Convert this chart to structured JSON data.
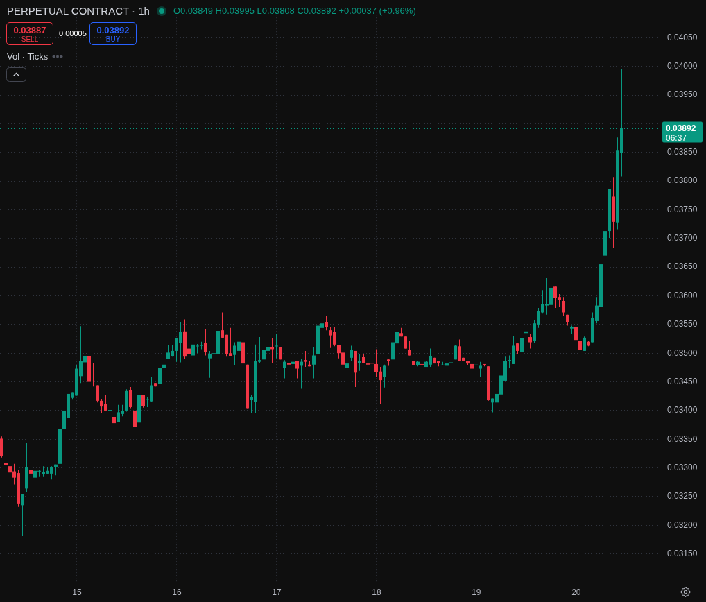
{
  "chart_data": {
    "type": "candlestick",
    "title": "PERPETUAL CONTRACT · 1h",
    "subtitle": "O0.03849 H0.03995 L0.03808 C0.03892 +0.00037 (+0.96%)",
    "categories": [
      null,
      null,
      null,
      null,
      null,
      null,
      null,
      null,
      null,
      null,
      null,
      null,
      null,
      null,
      null,
      null,
      null,
      null,
      "15",
      null,
      null,
      null,
      null,
      null,
      null,
      null,
      null,
      null,
      null,
      null,
      null,
      null,
      null,
      null,
      null,
      null,
      null,
      null,
      null,
      null,
      null,
      null,
      "16",
      null,
      null,
      null,
      null,
      null,
      null,
      null,
      null,
      null,
      null,
      null,
      null,
      null,
      null,
      null,
      null,
      null,
      null,
      null,
      null,
      null,
      null,
      null,
      "17",
      null,
      null,
      null,
      null,
      null,
      null,
      null,
      null,
      null,
      null,
      null,
      null,
      null,
      null,
      null,
      null,
      null,
      null,
      null,
      null,
      null,
      null,
      null,
      "18",
      null,
      null,
      null,
      null,
      null,
      null,
      null,
      null,
      null,
      null,
      null,
      null,
      null,
      null,
      null,
      null,
      null,
      null,
      null,
      null,
      null,
      null,
      null,
      "19",
      null,
      null,
      null,
      null,
      null,
      null,
      null,
      null,
      null,
      null,
      null,
      null,
      null,
      null,
      null,
      null,
      null,
      null,
      null,
      null,
      null,
      null,
      null,
      "20",
      null,
      null,
      null,
      null,
      null,
      null,
      null,
      null,
      null,
      null,
      null
    ],
    "ohlc": [
      [
        0.03351,
        0.03355,
        0.03318,
        0.03321
      ],
      [
        0.03308,
        0.03321,
        0.03304,
        0.03305
      ],
      [
        0.03303,
        0.03319,
        0.03292,
        0.03292
      ],
      [
        0.03294,
        0.03307,
        0.03271,
        0.03283
      ],
      [
        0.03291,
        0.03297,
        0.03232,
        0.03238
      ],
      [
        0.03235,
        0.03254,
        0.03181,
        0.03254
      ],
      [
        0.03264,
        0.03343,
        0.03258,
        0.03301
      ],
      [
        0.03296,
        0.03297,
        0.03278,
        0.0329
      ],
      [
        0.03283,
        0.03297,
        0.03274,
        0.03295
      ],
      [
        0.03294,
        0.03297,
        0.03284,
        0.03295
      ],
      [
        0.03289,
        0.03303,
        0.03284,
        0.03293
      ],
      [
        0.0329,
        0.03301,
        0.0329,
        0.03295
      ],
      [
        0.0329,
        0.03303,
        0.0328,
        0.03301
      ],
      [
        0.03302,
        0.03306,
        0.03287,
        0.03306
      ],
      [
        0.03307,
        0.03387,
        0.03305,
        0.03368
      ],
      [
        0.03368,
        0.034,
        0.03361,
        0.034
      ],
      [
        0.03387,
        0.03429,
        0.03387,
        0.03429
      ],
      [
        0.03422,
        0.03432,
        0.03419,
        0.03432
      ],
      [
        0.03426,
        0.03479,
        0.03426,
        0.03473
      ],
      [
        0.0346,
        0.03547,
        0.03448,
        0.03487
      ],
      [
        0.03484,
        0.03496,
        0.03461,
        0.03495
      ],
      [
        0.03495,
        0.03495,
        0.03448,
        0.0345
      ],
      [
        0.03452,
        0.03482,
        0.03442,
        0.03451
      ],
      [
        0.03444,
        0.03444,
        0.03414,
        0.03417
      ],
      [
        0.03417,
        0.0342,
        0.03395,
        0.03407
      ],
      [
        0.03412,
        0.03427,
        0.034,
        0.034
      ],
      [
        0.03399,
        0.03401,
        0.03371,
        0.03401
      ],
      [
        0.03389,
        0.03391,
        0.03375,
        0.03378
      ],
      [
        0.0338,
        0.0341,
        0.0338,
        0.03397
      ],
      [
        0.03394,
        0.0341,
        0.0339,
        0.03399
      ],
      [
        0.034,
        0.03437,
        0.03398,
        0.03434
      ],
      [
        0.03435,
        0.03441,
        0.03403,
        0.03406
      ],
      [
        0.034,
        0.034,
        0.03359,
        0.03372
      ],
      [
        0.03379,
        0.03431,
        0.03379,
        0.03427
      ],
      [
        0.03427,
        0.03427,
        0.03405,
        0.03408
      ],
      [
        0.03419,
        0.03424,
        0.03406,
        0.0342
      ],
      [
        0.03416,
        0.03458,
        0.03415,
        0.03444
      ],
      [
        0.03448,
        0.03448,
        0.03442,
        0.03442
      ],
      [
        0.03446,
        0.03474,
        0.03446,
        0.03474
      ],
      [
        0.03474,
        0.03493,
        0.03469,
        0.0348
      ],
      [
        0.0349,
        0.03514,
        0.0349,
        0.03501
      ],
      [
        0.03495,
        0.03514,
        0.03494,
        0.03504
      ],
      [
        0.03504,
        0.03526,
        0.03485,
        0.03526
      ],
      [
        0.03518,
        0.03554,
        0.03484,
        0.03537
      ],
      [
        0.03538,
        0.03559,
        0.0349,
        0.03494
      ],
      [
        0.03508,
        0.03516,
        0.03498,
        0.03498
      ],
      [
        0.03496,
        0.03516,
        0.03475,
        0.03515
      ],
      [
        0.03512,
        0.03516,
        0.035,
        0.03513
      ],
      [
        0.03513,
        0.0352,
        0.03507,
        0.03514
      ],
      [
        0.03518,
        0.03542,
        0.03496,
        0.03502
      ],
      [
        0.03491,
        0.03504,
        0.03457,
        0.03498
      ],
      [
        0.03499,
        0.03524,
        0.03468,
        0.035
      ],
      [
        0.03499,
        0.03545,
        0.03494,
        0.03539
      ],
      [
        0.0354,
        0.03571,
        0.03526,
        0.03527
      ],
      [
        0.03532,
        0.03532,
        0.03494,
        0.03498
      ],
      [
        0.035,
        0.03544,
        0.03495,
        0.03495
      ],
      [
        0.03497,
        0.03519,
        0.03479,
        0.03513
      ],
      [
        0.03504,
        0.0352,
        0.03503,
        0.0352
      ],
      [
        0.03519,
        0.03519,
        0.03482,
        0.03482
      ],
      [
        0.0348,
        0.0348,
        0.03403,
        0.03403
      ],
      [
        0.03418,
        0.03427,
        0.03395,
        0.03423
      ],
      [
        0.03415,
        0.03515,
        0.03395,
        0.03486
      ],
      [
        0.03485,
        0.03528,
        0.03482,
        0.03488
      ],
      [
        0.03489,
        0.03506,
        0.03475,
        0.03506
      ],
      [
        0.03504,
        0.03513,
        0.03492,
        0.0351
      ],
      [
        0.0351,
        0.03526,
        0.03483,
        0.03507
      ],
      [
        0.03512,
        0.03534,
        0.03491,
        0.03513
      ],
      [
        0.0351,
        0.0351,
        0.03489,
        0.03489
      ],
      [
        0.03474,
        0.03488,
        0.03456,
        0.03485
      ],
      [
        0.03483,
        0.03488,
        0.0348,
        0.0348
      ],
      [
        0.03481,
        0.03491,
        0.03481,
        0.03485
      ],
      [
        0.03487,
        0.03487,
        0.03456,
        0.03473
      ],
      [
        0.03478,
        0.0349,
        0.03438,
        0.03485
      ],
      [
        0.03488,
        0.03504,
        0.03476,
        0.03485
      ],
      [
        0.0348,
        0.03487,
        0.03477,
        0.03477
      ],
      [
        0.0348,
        0.0351,
        0.03456,
        0.03496
      ],
      [
        0.03499,
        0.03565,
        0.03499,
        0.03548
      ],
      [
        0.03544,
        0.0359,
        0.03534,
        0.03552
      ],
      [
        0.03554,
        0.03565,
        0.0354,
        0.03546
      ],
      [
        0.0354,
        0.03545,
        0.03509,
        0.03531
      ],
      [
        0.03537,
        0.03546,
        0.03512,
        0.03515
      ],
      [
        0.03514,
        0.03514,
        0.03491,
        0.035
      ],
      [
        0.03501,
        0.03501,
        0.03475,
        0.0348
      ],
      [
        0.03474,
        0.03492,
        0.03474,
        0.03482
      ],
      [
        0.03492,
        0.03513,
        0.03487,
        0.03506
      ],
      [
        0.03504,
        0.03504,
        0.03441,
        0.03466
      ],
      [
        0.03483,
        0.03498,
        0.03469,
        0.03486
      ],
      [
        0.03493,
        0.03498,
        0.03483,
        0.03483
      ],
      [
        0.03482,
        0.03489,
        0.03476,
        0.0348
      ],
      [
        0.03483,
        0.03484,
        0.0348,
        0.03482
      ],
      [
        0.03481,
        0.03507,
        0.03459,
        0.03467
      ],
      [
        0.03468,
        0.03476,
        0.03412,
        0.03453
      ],
      [
        0.03458,
        0.0348,
        0.0344,
        0.03478
      ],
      [
        0.03489,
        0.0349,
        0.03478,
        0.03487
      ],
      [
        0.03489,
        0.03524,
        0.0348,
        0.03519
      ],
      [
        0.03517,
        0.0355,
        0.03517,
        0.03537
      ],
      [
        0.03535,
        0.03544,
        0.03529,
        0.03529
      ],
      [
        0.03529,
        0.03529,
        0.03508,
        0.03508
      ],
      [
        0.03506,
        0.03521,
        0.03496,
        0.03496
      ],
      [
        0.03487,
        0.03487,
        0.03479,
        0.03479
      ],
      [
        0.03479,
        0.03486,
        0.03477,
        0.03485
      ],
      [
        0.03481,
        0.03508,
        0.03454,
        0.0348
      ],
      [
        0.03476,
        0.03487,
        0.03476,
        0.03485
      ],
      [
        0.0348,
        0.03508,
        0.03476,
        0.03495
      ],
      [
        0.03492,
        0.03492,
        0.03482,
        0.03482
      ],
      [
        0.03487,
        0.03487,
        0.03477,
        0.03483
      ],
      [
        0.03479,
        0.03485,
        0.03479,
        0.0348
      ],
      [
        0.03478,
        0.03487,
        0.03478,
        0.03482
      ],
      [
        0.03483,
        0.03487,
        0.03464,
        0.03484
      ],
      [
        0.03489,
        0.03514,
        0.03489,
        0.03513
      ],
      [
        0.03512,
        0.03524,
        0.03486,
        0.03486
      ],
      [
        0.03492,
        0.03492,
        0.03486,
        0.03486
      ],
      [
        0.03486,
        0.03486,
        0.03479,
        0.03482
      ],
      [
        0.03481,
        0.03481,
        0.03473,
        0.03473
      ],
      [
        0.03479,
        0.03481,
        0.03465,
        0.0348
      ],
      [
        0.03473,
        0.03485,
        0.03459,
        0.03478
      ],
      [
        0.03481,
        0.03481,
        0.03477,
        0.0348
      ],
      [
        0.03477,
        0.03477,
        0.03417,
        0.03418
      ],
      [
        0.03414,
        0.03421,
        0.03397,
        0.03421
      ],
      [
        0.03414,
        0.03436,
        0.03409,
        0.03429
      ],
      [
        0.03428,
        0.03465,
        0.03428,
        0.03461
      ],
      [
        0.03452,
        0.03494,
        0.03452,
        0.03486
      ],
      [
        0.03486,
        0.03496,
        0.03474,
        0.03488
      ],
      [
        0.03481,
        0.0353,
        0.03481,
        0.03513
      ],
      [
        0.03517,
        0.03518,
        0.03499,
        0.03504
      ],
      [
        0.03502,
        0.03526,
        0.03502,
        0.03526
      ],
      [
        0.03535,
        0.03546,
        0.03533,
        0.03538
      ],
      [
        0.03528,
        0.03534,
        0.03508,
        0.03519
      ],
      [
        0.03521,
        0.03557,
        0.03518,
        0.03552
      ],
      [
        0.0355,
        0.03579,
        0.03544,
        0.03574
      ],
      [
        0.03571,
        0.0361,
        0.03569,
        0.03586
      ],
      [
        0.03583,
        0.03631,
        0.03567,
        0.03586
      ],
      [
        0.03584,
        0.03628,
        0.03581,
        0.03614
      ],
      [
        0.03616,
        0.03616,
        0.03579,
        0.03597
      ],
      [
        0.03598,
        0.03603,
        0.03581,
        0.03593
      ],
      [
        0.03591,
        0.03598,
        0.03565,
        0.03571
      ],
      [
        0.03567,
        0.03567,
        0.03548,
        0.03554
      ],
      [
        0.03543,
        0.03548,
        0.03534,
        0.03546
      ],
      [
        0.03545,
        0.03545,
        0.03521,
        0.03523
      ],
      [
        0.03522,
        0.03552,
        0.03506,
        0.03506
      ],
      [
        0.03504,
        0.03529,
        0.03504,
        0.03527
      ],
      [
        0.0352,
        0.03521,
        0.03512,
        0.03513
      ],
      [
        0.03519,
        0.03571,
        0.03519,
        0.03562
      ],
      [
        0.03556,
        0.03598,
        0.03552,
        0.03583
      ],
      [
        0.03581,
        0.03657,
        0.03581,
        0.03655
      ],
      [
        0.0367,
        0.03733,
        0.0366,
        0.03713
      ],
      [
        0.03713,
        0.03786,
        0.03701,
        0.03786
      ],
      [
        0.03773,
        0.03807,
        0.03684,
        0.03729
      ],
      [
        0.03728,
        0.03876,
        0.03716,
        0.03853
      ],
      [
        0.03849,
        0.03995,
        0.03808,
        0.03892
      ]
    ],
    "colors": [
      "#f23645",
      "#f23645",
      "#f23645",
      "#f23645",
      "#f23645",
      "#089981",
      "#089981",
      "#f23645",
      "#089981",
      "#089981",
      "#089981",
      "#089981",
      "#089981",
      "#089981",
      "#089981",
      "#089981",
      "#089981",
      "#089981",
      "#089981",
      "#089981",
      "#089981",
      "#f23645",
      "#f23645",
      "#f23645",
      "#f23645",
      "#f23645",
      "#089981",
      "#f23645",
      "#089981",
      "#089981",
      "#089981",
      "#f23645",
      "#f23645",
      "#089981",
      "#f23645",
      "#089981",
      "#089981",
      "#f23645",
      "#089981",
      "#089981",
      "#089981",
      "#089981",
      "#089981",
      "#089981",
      "#f23645",
      "#f23645",
      "#089981",
      "#089981",
      "#089981",
      "#f23645",
      "#089981",
      "#089981",
      "#089981",
      "#f23645",
      "#f23645",
      "#f23645",
      "#089981",
      "#089981",
      "#f23645",
      "#f23645",
      "#089981",
      "#089981",
      "#089981",
      "#089981",
      "#089981",
      "#f23645",
      "#089981",
      "#f23645",
      "#089981",
      "#f23645",
      "#089981",
      "#f23645",
      "#089981",
      "#f23645",
      "#f23645",
      "#089981",
      "#089981",
      "#089981",
      "#f23645",
      "#f23645",
      "#f23645",
      "#f23645",
      "#f23645",
      "#089981",
      "#089981",
      "#f23645",
      "#089981",
      "#f23645",
      "#f23645",
      "#f23645",
      "#f23645",
      "#f23645",
      "#089981",
      "#f23645",
      "#089981",
      "#089981",
      "#f23645",
      "#f23645",
      "#f23645",
      "#f23645",
      "#089981",
      "#f23645",
      "#089981",
      "#089981",
      "#f23645",
      "#f23645",
      "#089981",
      "#089981",
      "#089981",
      "#089981",
      "#f23645",
      "#f23645",
      "#f23645",
      "#f23645",
      "#089981",
      "#089981",
      "#f23645",
      "#f23645",
      "#089981",
      "#089981",
      "#089981",
      "#089981",
      "#089981",
      "#089981",
      "#f23645",
      "#089981",
      "#089981",
      "#f23645",
      "#089981",
      "#089981",
      "#089981",
      "#089981",
      "#089981",
      "#f23645",
      "#f23645",
      "#f23645",
      "#f23645",
      "#089981",
      "#f23645",
      "#f23645",
      "#089981",
      "#f23645",
      "#089981",
      "#089981",
      "#089981",
      "#089981",
      "#089981",
      "#f23645",
      "#089981",
      "#089981"
    ],
    "ylim": [
      0.031,
      0.04095
    ],
    "yticks": [
      {
        "value": 0.0315,
        "label": "0.03150"
      },
      {
        "value": 0.032,
        "label": "0.03200"
      },
      {
        "value": 0.0325,
        "label": "0.03250"
      },
      {
        "value": 0.033,
        "label": "0.03300"
      },
      {
        "value": 0.0335,
        "label": "0.03350"
      },
      {
        "value": 0.034,
        "label": "0.03400"
      },
      {
        "value": 0.0345,
        "label": "0.03450"
      },
      {
        "value": 0.035,
        "label": "0.03500"
      },
      {
        "value": 0.0355,
        "label": "0.03550"
      },
      {
        "value": 0.036,
        "label": "0.03600"
      },
      {
        "value": 0.0365,
        "label": "0.03650"
      },
      {
        "value": 0.037,
        "label": "0.03700"
      },
      {
        "value": 0.0375,
        "label": "0.03750"
      },
      {
        "value": 0.038,
        "label": "0.03800"
      },
      {
        "value": 0.0385,
        "label": "0.03850"
      },
      {
        "value": 0.039,
        "label": null
      },
      {
        "value": 0.0395,
        "label": "0.03950"
      },
      {
        "value": 0.04,
        "label": "0.04000"
      },
      {
        "value": 0.0405,
        "label": "0.04050"
      }
    ],
    "grid": true,
    "ref_lines": [
      {
        "axis": "y",
        "value": 0.03892,
        "label": "0.03892",
        "color": "#089981",
        "line_style": "dotted"
      }
    ],
    "annotations": [
      "0.03887",
      "SELL",
      "0.00005",
      "0.03892",
      "BUY",
      "Vol · Ticks",
      "06:37"
    ]
  }
}
